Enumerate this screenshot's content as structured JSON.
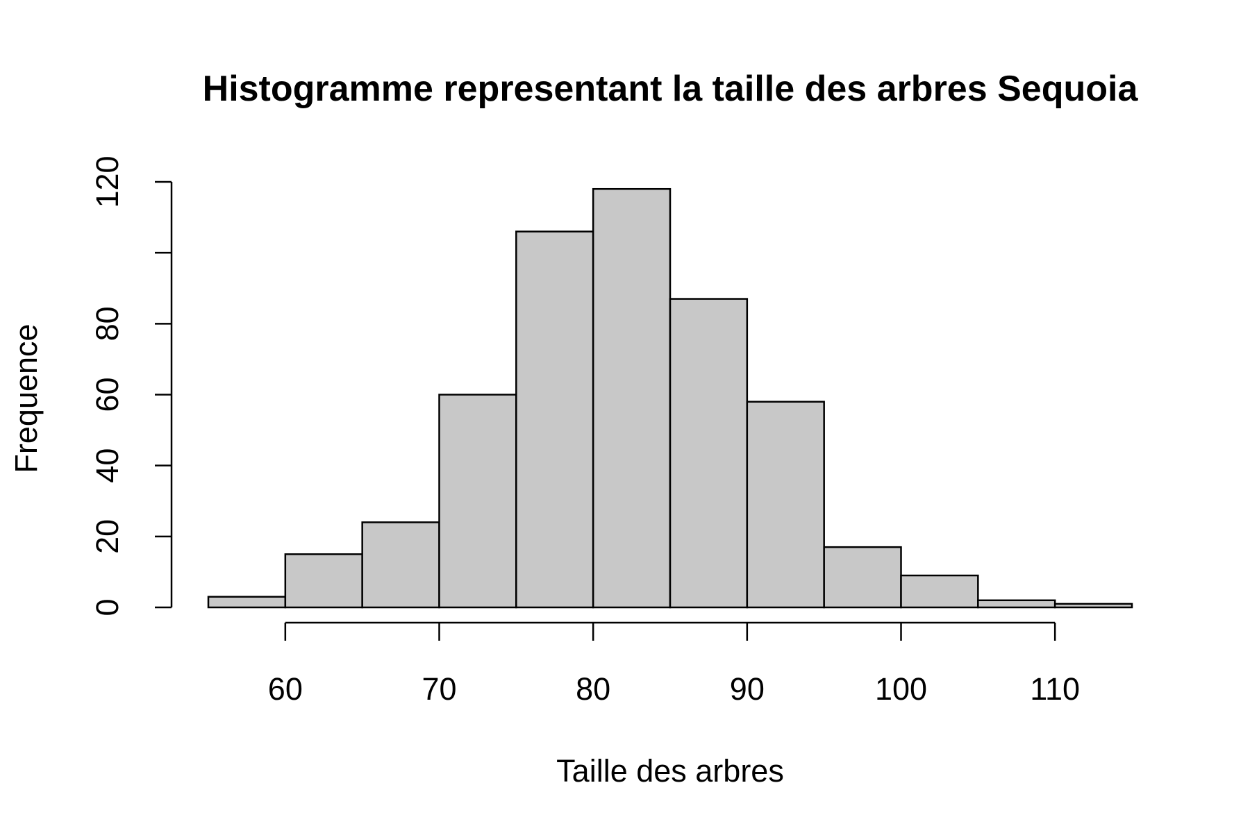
{
  "chart_data": {
    "type": "bar",
    "title": "Histogramme representant la taille des arbres Sequoia",
    "xlabel": "Taille des arbres",
    "ylabel": "Frequence",
    "bins": [
      {
        "x0": 55,
        "x1": 60,
        "value": 3
      },
      {
        "x0": 60,
        "x1": 65,
        "value": 15
      },
      {
        "x0": 65,
        "x1": 70,
        "value": 24
      },
      {
        "x0": 70,
        "x1": 75,
        "value": 60
      },
      {
        "x0": 75,
        "x1": 80,
        "value": 106
      },
      {
        "x0": 80,
        "x1": 85,
        "value": 118
      },
      {
        "x0": 85,
        "x1": 90,
        "value": 87
      },
      {
        "x0": 90,
        "x1": 95,
        "value": 58
      },
      {
        "x0": 95,
        "x1": 100,
        "value": 17
      },
      {
        "x0": 100,
        "x1": 105,
        "value": 9
      },
      {
        "x0": 105,
        "x1": 110,
        "value": 2
      },
      {
        "x0": 110,
        "x1": 115,
        "value": 1
      }
    ],
    "xlim": [
      55,
      115
    ],
    "ylim": [
      0,
      120
    ],
    "xticks": [
      60,
      70,
      80,
      90,
      100,
      110
    ],
    "yticks": [
      0,
      20,
      40,
      60,
      80,
      100,
      120
    ],
    "yticklabels": [
      "0",
      "20",
      "40",
      "60",
      "80",
      "",
      "120"
    ],
    "bar_color": "#c8c8c8",
    "grid": false
  }
}
